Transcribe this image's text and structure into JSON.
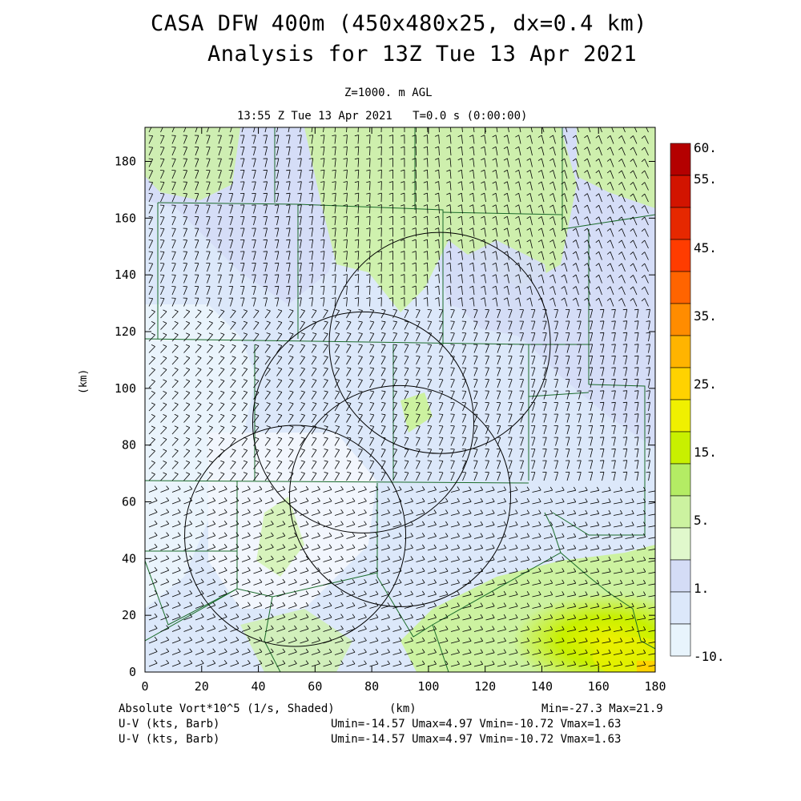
{
  "header": {
    "title_line1": "CASA DFW 400m (450x480x25, dx=0.4 km)",
    "title_line2": "Analysis for 13Z Tue 13 Apr 2021",
    "level": "Z=1000. m AGL",
    "time": "13:55 Z Tue 13 Apr 2021   T=0.0 s (0:00:00)"
  },
  "axes": {
    "x_label": "(km)",
    "y_label": "(km)",
    "x_range": [
      0,
      180
    ],
    "y_range": [
      0,
      192
    ],
    "x_ticks": [
      "0",
      "20",
      "40",
      "60",
      "80",
      "100",
      "120",
      "140",
      "160",
      "180"
    ],
    "y_ticks": [
      "0",
      "20",
      "40",
      "60",
      "80",
      "100",
      "120",
      "140",
      "160",
      "180"
    ]
  },
  "colorbar": {
    "labels": [
      "60.",
      "55.",
      "45.",
      "35.",
      "25.",
      "15.",
      "5.",
      "1.",
      "-10."
    ],
    "colors": [
      "#b40000",
      "#d21400",
      "#e62800",
      "#ff3c00",
      "#ff6400",
      "#ff8c00",
      "#ffb400",
      "#ffd200",
      "#f0f000",
      "#c8f000",
      "#b4ec64",
      "#ccf2a0",
      "#e0f8cc",
      "#d4dcf6",
      "#dce8fa",
      "#e8f4fc"
    ]
  },
  "footer": {
    "field": "Absolute Vort*10^5 (1/s, Shaded)",
    "xunit": "(km)",
    "minmax": "Min=-27.3 Max=21.9",
    "barb1_label": "U-V (kts, Barb)",
    "barb1_stats": "Umin=-14.57 Umax=4.97 Vmin=-10.72 Vmax=1.63",
    "barb2_label": "U-V (kts, Barb)",
    "barb2_stats": "Umin=-14.57 Umax=4.97 Vmin=-10.72 Vmax=1.63"
  },
  "radar_circles_km": [
    {
      "cx": 104,
      "cy": 116,
      "r": 39
    },
    {
      "cx": 77,
      "cy": 88,
      "r": 39
    },
    {
      "cx": 90,
      "cy": 62,
      "r": 39
    },
    {
      "cx": 53,
      "cy": 48,
      "r": 39
    }
  ]
}
